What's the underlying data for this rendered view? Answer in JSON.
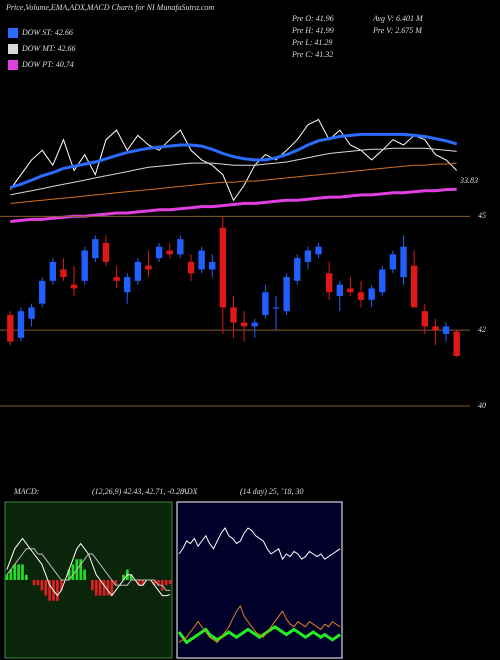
{
  "chart_data": [
    {
      "type": "line",
      "title": "Price,Volume,EMA,ADX,MACD Charts for NI MunafaSutra.com",
      "annotations": [
        "Pre  O: 41.96",
        "Pre  H: 41.99",
        "Pre  L: 41.29",
        "Pre  C: 41.32",
        "Avg V: 6.401 M",
        "Pre  V: 2.675 M",
        "33.83"
      ],
      "ylim": [
        30,
        46
      ],
      "series": [
        {
          "color": "#ffffff",
          "width": 1,
          "values": [
            33.8,
            35.2,
            36.6,
            37.5,
            36.1,
            38.5,
            35.6,
            37.1,
            35.2,
            38.5,
            39.4,
            37.5,
            38.9,
            38.0,
            37.5,
            38.5,
            39.4,
            37.5,
            36.6,
            36.1,
            35.2,
            32.8,
            34.2,
            36.1,
            37.1,
            36.6,
            37.5,
            38.5,
            39.9,
            40.4,
            38.5,
            39.4,
            38.0,
            37.5,
            36.6,
            37.5,
            38.5,
            38.0,
            38.9,
            38.5,
            37.1,
            36.6,
            35.6
          ]
        },
        {
          "name": "DOW ST: 42.66",
          "color": "#2a6cff",
          "width": 3,
          "values": [
            34.0,
            34.3,
            34.7,
            35.1,
            35.4,
            35.8,
            36.0,
            36.2,
            36.4,
            36.7,
            37.0,
            37.3,
            37.5,
            37.7,
            37.8,
            37.9,
            38.0,
            38.0,
            37.9,
            37.6,
            37.2,
            36.9,
            36.7,
            36.6,
            36.6,
            36.8,
            37.1,
            37.5,
            38.0,
            38.4,
            38.6,
            38.8,
            38.9,
            39.0,
            39.0,
            39.0,
            39.0,
            39.0,
            38.9,
            38.8,
            38.6,
            38.4,
            38.1
          ]
        },
        {
          "name": "DOW MT: 42.66",
          "color": "#d8d8d8",
          "width": 1,
          "values": [
            33.3,
            33.5,
            33.7,
            33.9,
            34.1,
            34.3,
            34.5,
            34.7,
            34.9,
            35.1,
            35.3,
            35.5,
            35.7,
            35.9,
            36.0,
            36.1,
            36.2,
            36.3,
            36.3,
            36.3,
            36.2,
            36.1,
            36.1,
            36.1,
            36.2,
            36.3,
            36.4,
            36.6,
            36.8,
            37.0,
            37.2,
            37.3,
            37.4,
            37.5,
            37.6,
            37.6,
            37.7,
            37.7,
            37.7,
            37.7,
            37.6,
            37.5,
            37.4
          ]
        },
        {
          "color": "#d07020",
          "width": 1,
          "values": [
            32.5,
            32.6,
            32.7,
            32.8,
            32.9,
            33.0,
            33.1,
            33.2,
            33.3,
            33.4,
            33.5,
            33.6,
            33.7,
            33.8,
            33.9,
            34.0,
            34.1,
            34.2,
            34.3,
            34.4,
            34.5,
            34.5,
            34.6,
            34.6,
            34.7,
            34.8,
            34.9,
            35.0,
            35.1,
            35.2,
            35.3,
            35.4,
            35.5,
            35.6,
            35.7,
            35.8,
            35.9,
            36.0,
            36.1,
            36.1,
            36.2,
            36.2,
            36.3
          ]
        },
        {
          "name": "DOW PT: 40.74",
          "color": "#e040e0",
          "width": 3,
          "values": [
            30.8,
            30.9,
            31.0,
            31.0,
            31.1,
            31.2,
            31.3,
            31.3,
            31.4,
            31.5,
            31.6,
            31.6,
            31.7,
            31.8,
            31.9,
            31.9,
            32.0,
            32.1,
            32.2,
            32.2,
            32.3,
            32.4,
            32.5,
            32.5,
            32.6,
            32.7,
            32.8,
            32.8,
            32.9,
            33.0,
            33.1,
            33.1,
            33.2,
            33.3,
            33.3,
            33.4,
            33.5,
            33.5,
            33.6,
            33.7,
            33.7,
            33.8,
            33.83
          ]
        }
      ]
    },
    {
      "type": "candlestick",
      "ylim": [
        39.5,
        45.3
      ],
      "yticks": [
        45,
        42,
        40
      ],
      "grid": true,
      "grid_color": "#8a5a2a",
      "up_color": "#2060ff",
      "down_color": "#e01818",
      "open": [
        42.4,
        41.8,
        42.3,
        42.7,
        43.3,
        43.6,
        43.2,
        43.3,
        43.9,
        44.3,
        43.4,
        43.0,
        43.3,
        43.7,
        43.9,
        44.1,
        44.0,
        43.8,
        43.6,
        43.6,
        44.7,
        42.6,
        42.2,
        42.1,
        42.4,
        42.6,
        42.5,
        43.3,
        43.8,
        44.0,
        43.5,
        42.9,
        43.1,
        43.0,
        42.8,
        43.0,
        43.6,
        43.4,
        43.7,
        42.5,
        42.1,
        41.9,
        41.96
      ],
      "high": [
        42.5,
        42.6,
        42.7,
        43.4,
        43.9,
        43.9,
        43.7,
        44.2,
        44.5,
        44.5,
        43.7,
        43.5,
        43.9,
        44.1,
        44.3,
        44.3,
        44.5,
        44.0,
        44.2,
        44.0,
        45.0,
        42.9,
        42.5,
        42.3,
        43.2,
        42.9,
        43.5,
        44.0,
        44.2,
        44.3,
        43.8,
        43.3,
        43.4,
        43.3,
        43.2,
        43.7,
        44.1,
        44.5,
        44.1,
        42.7,
        42.3,
        42.2,
        41.99
      ],
      "low": [
        41.6,
        41.7,
        42.1,
        42.6,
        43.2,
        43.3,
        42.9,
        43.2,
        43.8,
        43.7,
        43.1,
        42.7,
        43.2,
        43.4,
        43.8,
        43.9,
        43.9,
        43.3,
        43.5,
        43.4,
        41.9,
        41.8,
        41.7,
        41.8,
        42.3,
        42.0,
        42.4,
        43.2,
        43.6,
        43.9,
        42.8,
        42.5,
        42.9,
        42.6,
        42.6,
        42.9,
        43.5,
        43.2,
        42.6,
        41.9,
        41.6,
        41.7,
        41.29
      ],
      "close": [
        41.7,
        42.5,
        42.6,
        43.3,
        43.8,
        43.4,
        43.1,
        44.1,
        44.4,
        43.8,
        43.3,
        43.4,
        43.8,
        43.6,
        44.2,
        44.0,
        44.4,
        43.5,
        44.1,
        43.8,
        42.6,
        42.2,
        42.1,
        42.2,
        43.0,
        42.6,
        43.4,
        43.9,
        44.1,
        44.2,
        43.0,
        43.2,
        43.0,
        42.8,
        43.1,
        43.6,
        44.0,
        44.2,
        42.6,
        42.1,
        42.0,
        42.1,
        41.32
      ]
    },
    {
      "type": "macd",
      "title": "MACD:",
      "subtitle": "(12,26,9) 42.43, 42.71, -0.28",
      "ylim": [
        -1.5,
        1.5
      ],
      "background": "#0b250b",
      "border": "#3c8c3c",
      "series": [
        {
          "style": "bar",
          "color": "#22dd22",
          "negative_color": "#e02020",
          "values": [
            0.1,
            0.2,
            0.3,
            0.3,
            0.3,
            0.1,
            0,
            -0.1,
            -0.1,
            -0.2,
            -0.3,
            -0.4,
            -0.4,
            -0.4,
            -0.2,
            0,
            0.2,
            0.3,
            0.4,
            0.4,
            0.2,
            0,
            -0.2,
            -0.3,
            -0.3,
            -0.3,
            -0.3,
            -0.3,
            -0.1,
            0,
            0.1,
            0.2,
            0.1,
            0,
            -0.1,
            -0.1,
            0,
            0,
            -0.1,
            -0.1,
            -0.2,
            -0.1,
            -0.08
          ]
        },
        {
          "style": "line",
          "color": "#ffffff",
          "values": [
            0.2,
            0.4,
            0.6,
            0.7,
            0.8,
            0.7,
            0.6,
            0.5,
            0.4,
            0.3,
            0.1,
            -0.1,
            -0.2,
            -0.3,
            -0.2,
            0.0,
            0.2,
            0.4,
            0.6,
            0.7,
            0.6,
            0.5,
            0.3,
            0.1,
            0.0,
            -0.1,
            -0.2,
            -0.3,
            -0.2,
            -0.1,
            0.0,
            0.1,
            0.1,
            0.0,
            -0.1,
            -0.1,
            0.0,
            0.0,
            -0.1,
            -0.2,
            -0.3,
            -0.3,
            -0.28
          ]
        },
        {
          "style": "line",
          "color": "#bbbbbb",
          "values": [
            0.1,
            0.2,
            0.3,
            0.4,
            0.5,
            0.6,
            0.6,
            0.6,
            0.5,
            0.5,
            0.4,
            0.3,
            0.2,
            0.1,
            0.0,
            0.0,
            0.0,
            0.1,
            0.2,
            0.3,
            0.4,
            0.5,
            0.5,
            0.4,
            0.3,
            0.2,
            0.1,
            0.0,
            -0.1,
            -0.1,
            -0.1,
            -0.1,
            0.0,
            0.0,
            0.0,
            0.0,
            0.0,
            0.0,
            0.0,
            -0.1,
            -0.1,
            -0.2,
            -0.2
          ]
        }
      ]
    },
    {
      "type": "line",
      "title": "ADX",
      "subtitle": "(14  day) 25, ˜18, 30",
      "ylim": [
        0,
        60
      ],
      "background": "#00002a",
      "border": "#ffffff",
      "series": [
        {
          "color": "#ffffff",
          "width": 1,
          "values": [
            40,
            42,
            45,
            44,
            46,
            43,
            45,
            47,
            44,
            42,
            45,
            48,
            50,
            47,
            46,
            44,
            45,
            48,
            50,
            49,
            47,
            46,
            45,
            42,
            40,
            41,
            42,
            38,
            40,
            39,
            41,
            40,
            38,
            39,
            41,
            40,
            39,
            40,
            38,
            39,
            40,
            41,
            42
          ]
        },
        {
          "color": "#22ee22",
          "width": 3,
          "values": [
            10,
            8,
            6,
            7,
            8,
            9,
            10,
            11,
            9,
            8,
            7,
            8,
            9,
            10,
            9,
            8,
            9,
            10,
            11,
            10,
            9,
            8,
            9,
            10,
            11,
            12,
            11,
            10,
            9,
            10,
            11,
            10,
            9,
            8,
            9,
            10,
            9,
            8,
            9,
            8,
            7,
            8,
            9
          ]
        },
        {
          "color": "#e08020",
          "width": 1,
          "values": [
            6,
            7,
            8,
            10,
            12,
            14,
            12,
            10,
            8,
            7,
            6,
            8,
            10,
            12,
            15,
            18,
            20,
            16,
            14,
            12,
            10,
            9,
            8,
            10,
            12,
            14,
            16,
            18,
            15,
            13,
            12,
            14,
            13,
            12,
            14,
            13,
            12,
            11,
            13,
            12,
            14,
            13,
            12
          ]
        }
      ]
    }
  ]
}
